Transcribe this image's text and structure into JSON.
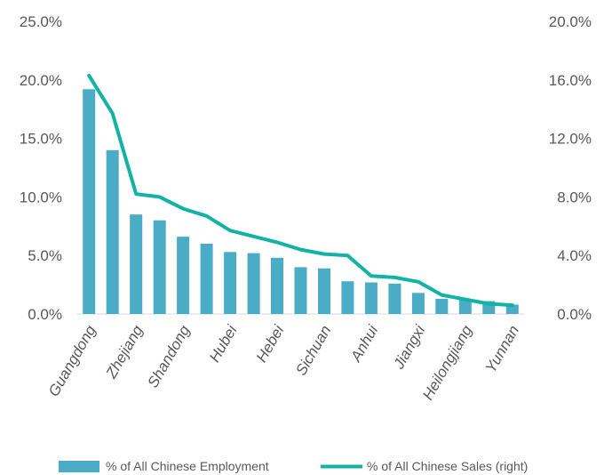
{
  "chart_data": {
    "type": "bar",
    "title": "",
    "categories": [
      "Guangdong",
      "",
      "Zhejiang",
      "",
      "Shandong",
      "",
      "Hubei",
      "",
      "Hebei",
      "",
      "Sichuan",
      "",
      "Anhui",
      "",
      "Jiangxi",
      "",
      "Heilongjiang",
      "",
      "Yunnan"
    ],
    "shown_category_labels": [
      "Guangdong",
      "Zhejiang",
      "Shandong",
      "Hubei",
      "Hebei",
      "Sichuan",
      "Anhui",
      "Jiangxi",
      "Heilongjiang",
      "Yunnan"
    ],
    "series": [
      {
        "name": "% of All Chinese Employment",
        "type": "bar",
        "axis": "left",
        "color": "#4bacc6",
        "values": [
          19.2,
          14.0,
          8.5,
          8.0,
          6.6,
          6.0,
          5.3,
          5.2,
          4.8,
          4.0,
          3.9,
          2.8,
          2.7,
          2.6,
          1.8,
          1.3,
          1.2,
          1.1,
          0.8
        ]
      },
      {
        "name": "% of All Chinese Sales (right)",
        "type": "line",
        "axis": "right",
        "color": "#12b3a5",
        "values": [
          16.3,
          13.7,
          8.2,
          8.0,
          7.2,
          6.7,
          5.7,
          5.3,
          4.9,
          4.4,
          4.1,
          4.0,
          2.6,
          2.5,
          2.2,
          1.3,
          1.0,
          0.7,
          0.6
        ]
      }
    ],
    "y_left": {
      "ylim": [
        0,
        25
      ],
      "ticks": [
        "0.0%",
        "5.0%",
        "10.0%",
        "15.0%",
        "20.0%",
        "25.0%"
      ],
      "tick_values": [
        0,
        5,
        10,
        15,
        20,
        25
      ]
    },
    "y_right": {
      "ylim": [
        0,
        20
      ],
      "ticks": [
        "0.0%",
        "4.0%",
        "8.0%",
        "12.0%",
        "16.0%",
        "20.0%"
      ],
      "tick_values": [
        0,
        4,
        8,
        12,
        16,
        20
      ]
    },
    "grid": false,
    "legend_position": "bottom"
  }
}
